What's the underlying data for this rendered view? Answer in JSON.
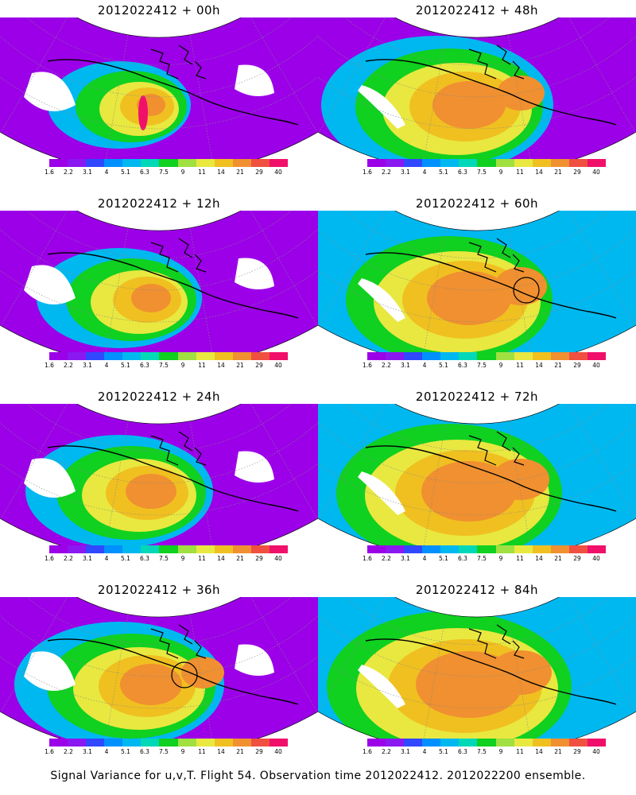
{
  "panels": [
    {
      "title": "2012022412 + 00h"
    },
    {
      "title": "2012022412 + 48h"
    },
    {
      "title": "2012022412 + 12h"
    },
    {
      "title": "2012022412 + 60h"
    },
    {
      "title": "2012022412 + 24h"
    },
    {
      "title": "2012022412 + 72h"
    },
    {
      "title": "2012022412 + 36h"
    },
    {
      "title": "2012022412 + 84h"
    }
  ],
  "colorbar": {
    "labels": [
      "1.6",
      "2.2",
      "3.1",
      "4",
      "5.1",
      "6.3",
      "7.5",
      "9",
      "11",
      "14",
      "21",
      "29",
      "40"
    ],
    "colors": [
      "#9b00e8",
      "#8a18f0",
      "#3048ff",
      "#0090ff",
      "#00b8f0",
      "#00d8b8",
      "#10d020",
      "#a0e040",
      "#e8e840",
      "#f0c020",
      "#f09030",
      "#f05040",
      "#f0106a"
    ]
  },
  "caption": "Signal Variance for u,v,T. Flight 54. Observation time 2012022412. 2012022200 ensemble."
}
